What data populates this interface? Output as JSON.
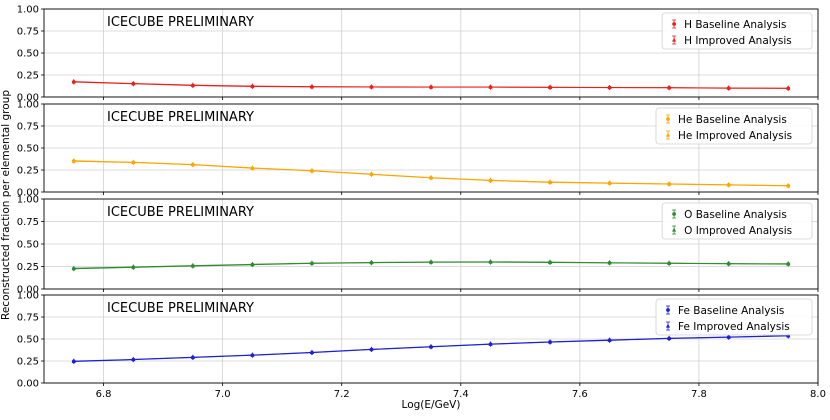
{
  "chart_data": {
    "type": "line",
    "x_label": "Log(E/GeV)",
    "y_label": "Reconstructed fraction per elemental group",
    "x_ticks": [
      "6.8",
      "7.0",
      "7.2",
      "7.4",
      "7.6",
      "7.8",
      "8.0"
    ],
    "x_tick_values": [
      6.8,
      7.0,
      7.2,
      7.4,
      7.6,
      7.8,
      8.0
    ],
    "xlim": [
      6.7,
      8.0
    ],
    "grid": true,
    "panels": [
      {
        "watermark": "ICECUBE PRELIMINARY",
        "ylim": [
          0,
          1
        ],
        "y_ticks": [
          "0.00",
          "0.25",
          "0.50",
          "0.75",
          "1.00"
        ],
        "legend_position": "top-right",
        "color": "#e8221b",
        "x": [
          6.75,
          6.85,
          6.95,
          7.05,
          7.15,
          7.25,
          7.35,
          7.45,
          7.55,
          7.65,
          7.75,
          7.85,
          7.95
        ],
        "series": [
          {
            "name": "H Baseline Analysis",
            "marker": "circle",
            "values": [
              0.17,
              0.15,
              0.13,
              0.12,
              0.115,
              0.113,
              0.112,
              0.112,
              0.11,
              0.107,
              0.105,
              0.1,
              0.098
            ]
          },
          {
            "name": "H Improved Analysis",
            "marker": "triangle",
            "values": [
              0.175,
              0.153,
              0.135,
              0.124,
              0.118,
              0.115,
              0.114,
              0.113,
              0.111,
              0.108,
              0.106,
              0.102,
              0.1
            ]
          }
        ]
      },
      {
        "watermark": "ICECUBE PRELIMINARY",
        "ylim": [
          0,
          1
        ],
        "y_ticks": [
          "0.00",
          "0.25",
          "0.50",
          "0.75",
          "1.00"
        ],
        "legend_position": "top-right",
        "color": "#ffa500",
        "x": [
          6.75,
          6.85,
          6.95,
          7.05,
          7.15,
          7.25,
          7.35,
          7.45,
          7.55,
          7.65,
          7.75,
          7.85,
          7.95
        ],
        "series": [
          {
            "name": "He Baseline Analysis",
            "marker": "circle",
            "values": [
              0.35,
              0.335,
              0.31,
              0.27,
              0.24,
              0.2,
              0.16,
              0.13,
              0.11,
              0.1,
              0.09,
              0.08,
              0.07
            ]
          },
          {
            "name": "He Improved Analysis",
            "marker": "triangle",
            "values": [
              0.355,
              0.338,
              0.313,
              0.274,
              0.243,
              0.203,
              0.163,
              0.133,
              0.113,
              0.102,
              0.092,
              0.082,
              0.072
            ]
          }
        ]
      },
      {
        "watermark": "ICECUBE PRELIMINARY",
        "ylim": [
          0,
          1
        ],
        "y_ticks": [
          "0.00",
          "0.25",
          "0.50",
          "0.75",
          "1.00"
        ],
        "legend_position": "top-right",
        "color": "#2f8c2f",
        "x": [
          6.75,
          6.85,
          6.95,
          7.05,
          7.15,
          7.25,
          7.35,
          7.45,
          7.55,
          7.65,
          7.75,
          7.85,
          7.95
        ],
        "series": [
          {
            "name": "O Baseline Analysis",
            "marker": "circle",
            "values": [
              0.225,
              0.24,
              0.255,
              0.27,
              0.285,
              0.292,
              0.297,
              0.298,
              0.295,
              0.29,
              0.285,
              0.28,
              0.277
            ]
          },
          {
            "name": "O Improved Analysis",
            "marker": "triangle",
            "values": [
              0.23,
              0.245,
              0.26,
              0.274,
              0.288,
              0.295,
              0.3,
              0.302,
              0.298,
              0.292,
              0.287,
              0.282,
              0.28
            ]
          }
        ]
      },
      {
        "watermark": "ICECUBE PRELIMINARY",
        "ylim": [
          0,
          1
        ],
        "y_ticks": [
          "0.00",
          "0.25",
          "0.50",
          "0.75",
          "1.00"
        ],
        "legend_position": "top-right",
        "color": "#1f1fd6",
        "x": [
          6.75,
          6.85,
          6.95,
          7.05,
          7.15,
          7.25,
          7.35,
          7.45,
          7.55,
          7.65,
          7.75,
          7.85,
          7.95
        ],
        "series": [
          {
            "name": "Fe Baseline Analysis",
            "marker": "circle",
            "values": [
              0.245,
              0.265,
              0.29,
              0.315,
              0.345,
              0.38,
              0.41,
              0.44,
              0.465,
              0.485,
              0.505,
              0.52,
              0.535
            ]
          },
          {
            "name": "Fe Improved Analysis",
            "marker": "triangle",
            "values": [
              0.248,
              0.268,
              0.293,
              0.318,
              0.348,
              0.383,
              0.413,
              0.443,
              0.468,
              0.488,
              0.508,
              0.523,
              0.538
            ]
          }
        ]
      }
    ]
  }
}
